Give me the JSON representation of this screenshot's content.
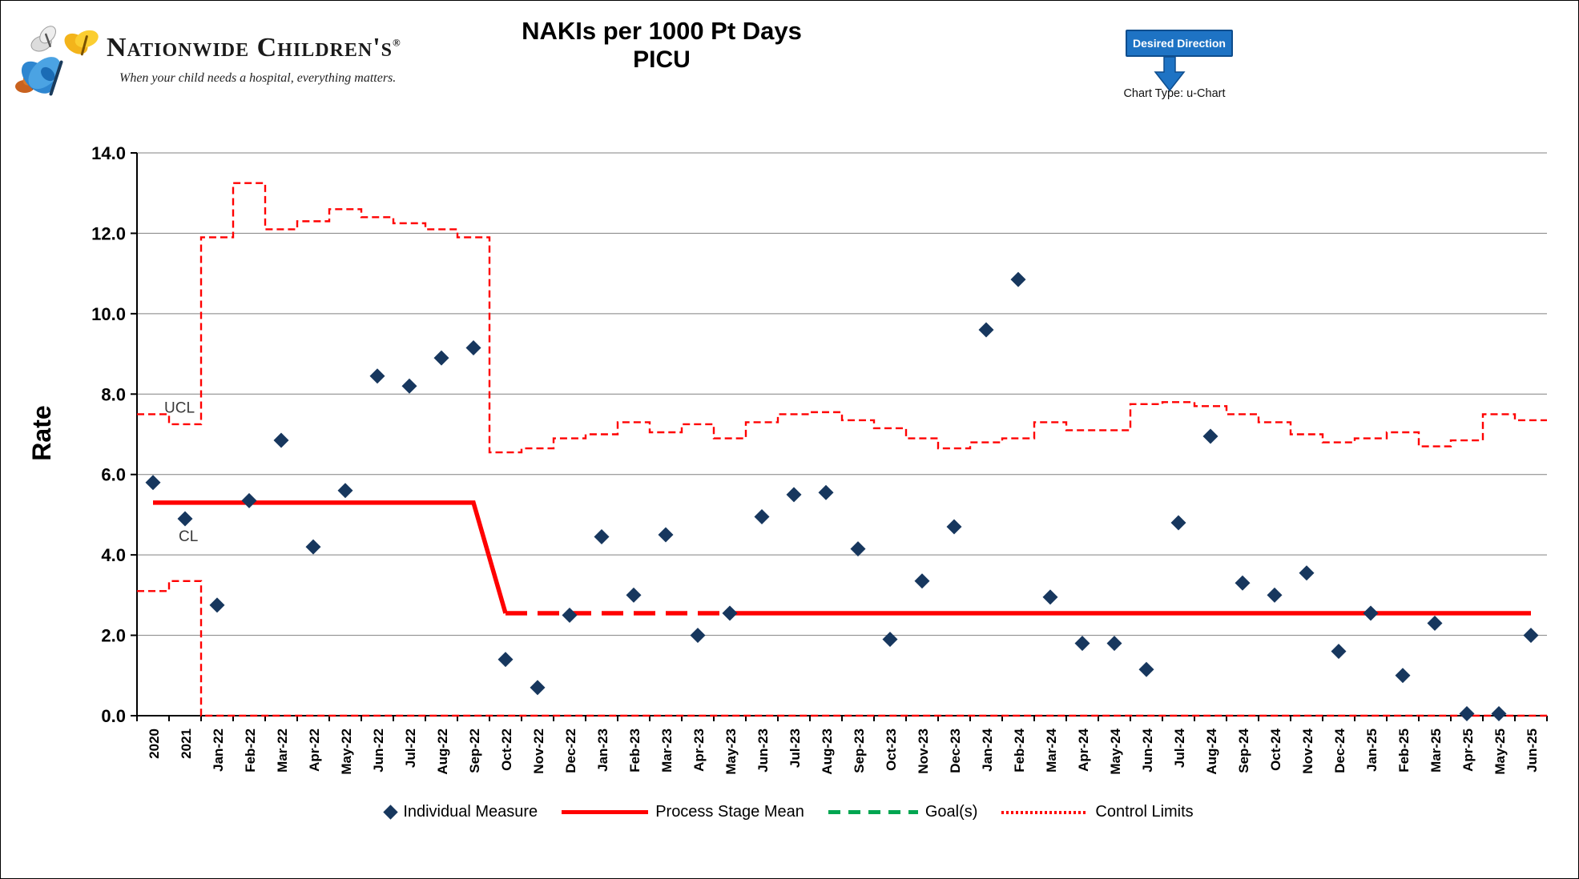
{
  "header": {
    "logo_name": "Nationwide Children's",
    "logo_trademark": "®",
    "logo_tagline": "When your child needs a hospital, everything matters.",
    "title_line1": "NAKIs per 1000 Pt Days",
    "title_line2": "PICU",
    "desired_direction_label": "Desired Direction",
    "desired_direction_icon": "down-arrow-icon",
    "chart_type_label": "Chart Type: u-Chart"
  },
  "colors": {
    "point_navy": "#17375E",
    "control_red": "#FF0000",
    "goal_green": "#00A651",
    "grid_gray": "#808080",
    "axis_black": "#000000",
    "desired_bg": "#1E73C4",
    "desired_border": "#0E4D8D"
  },
  "chart_data": {
    "type": "scatter",
    "subtype": "u-chart control chart",
    "title": "NAKIs per 1000 Pt Days PICU",
    "xlabel": "",
    "ylabel": "Rate",
    "ylim": [
      0,
      14
    ],
    "ytick_labels": [
      "0.0",
      "2.0",
      "4.0",
      "6.0",
      "8.0",
      "10.0",
      "12.0",
      "14.0"
    ],
    "grid": true,
    "legend_position": "bottom",
    "categories": [
      "2020",
      "2021",
      "Jan-22",
      "Feb-22",
      "Mar-22",
      "Apr-22",
      "May-22",
      "Jun-22",
      "Jul-22",
      "Aug-22",
      "Sep-22",
      "Oct-22",
      "Nov-22",
      "Dec-22",
      "Jan-23",
      "Feb-23",
      "Mar-23",
      "Apr-23",
      "May-23",
      "Jun-23",
      "Jul-23",
      "Aug-23",
      "Sep-23",
      "Oct-23",
      "Nov-23",
      "Dec-23",
      "Jan-24",
      "Feb-24",
      "Mar-24",
      "Apr-24",
      "May-24",
      "Jun-24",
      "Jul-24",
      "Aug-24",
      "Sep-24",
      "Oct-24",
      "Nov-24",
      "Dec-24",
      "Jan-25",
      "Feb-25",
      "Mar-25",
      "Apr-25",
      "May-25",
      "Jun-25"
    ],
    "series": [
      {
        "name": "Individual Measure",
        "style": "navy-diamond-points",
        "values": [
          5.8,
          4.9,
          2.75,
          5.35,
          6.85,
          4.2,
          5.6,
          8.45,
          8.2,
          8.9,
          9.15,
          1.4,
          0.7,
          2.5,
          4.45,
          3.0,
          4.5,
          2.0,
          2.55,
          4.95,
          5.5,
          5.55,
          4.15,
          1.9,
          3.35,
          4.7,
          9.6,
          10.85,
          2.95,
          1.8,
          1.8,
          1.15,
          4.8,
          6.95,
          3.3,
          3.0,
          3.55,
          1.6,
          2.55,
          1.0,
          2.3,
          0.05,
          0.05,
          2.0
        ]
      },
      {
        "name": "UCL",
        "style": "red-dashed-step",
        "values": [
          7.5,
          7.25,
          11.9,
          13.25,
          12.1,
          12.3,
          12.6,
          12.4,
          12.25,
          12.1,
          11.9,
          6.55,
          6.65,
          6.9,
          7.0,
          7.3,
          7.05,
          7.25,
          6.9,
          7.3,
          7.5,
          7.55,
          7.35,
          7.15,
          6.9,
          6.65,
          6.8,
          6.9,
          7.3,
          7.1,
          7.1,
          7.75,
          7.8,
          7.7,
          7.5,
          7.3,
          7.0,
          6.8,
          6.9,
          7.05,
          6.7,
          6.85,
          7.5,
          7.35
        ]
      },
      {
        "name": "LCL",
        "style": "red-dashed-step",
        "values": [
          3.1,
          3.35,
          0,
          0,
          0,
          0,
          0,
          0,
          0,
          0,
          0,
          0,
          0,
          0,
          0,
          0,
          0,
          0,
          0,
          0,
          0,
          0,
          0,
          0,
          0,
          0,
          0,
          0,
          0,
          0,
          0,
          0,
          0,
          0,
          0,
          0,
          0,
          0,
          0,
          0,
          0,
          0,
          0,
          0
        ]
      }
    ],
    "process_stage_mean": {
      "name": "Process Stage Mean",
      "stages": [
        {
          "value": 5.3,
          "from_index": 0,
          "to_index": 10
        },
        {
          "value": 2.55,
          "from_index": 11,
          "to_index": 43
        }
      ],
      "dashed_from_index": 11,
      "dashed_to_index": 18
    },
    "annotations": {
      "ucl_label": "UCL",
      "cl_label": "CL"
    }
  },
  "legend": {
    "items": [
      {
        "label": "Individual Measure",
        "swatch": "navy-diamond"
      },
      {
        "label": "Process Stage Mean",
        "swatch": "red-solid-line"
      },
      {
        "label": "Goal(s)",
        "swatch": "green-dashed-line"
      },
      {
        "label": "Control Limits",
        "swatch": "red-dotted-line"
      }
    ]
  }
}
